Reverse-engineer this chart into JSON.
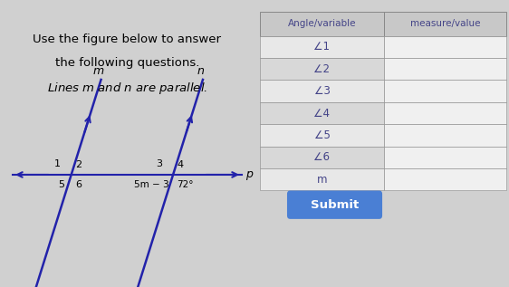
{
  "bg_color": "#d0d0d0",
  "left_panel_bg": "#ffffff",
  "right_panel_bg": "#d8d8d8",
  "toolbar_bg": "#3a3a5c",
  "title_line1": "Use the figure below to answer",
  "title_line2": "the following questions.",
  "title_line3": "Lines $m$ and $n$ are parallel.",
  "title_fontsize": 9.5,
  "table_header_col1": "Angle/variable",
  "table_header_col2": "measure/value",
  "table_rows": [
    "∠1",
    "∠2",
    "∠3",
    "∠4",
    "∠5",
    "∠6",
    "m"
  ],
  "submit_text": "Submit",
  "submit_color": "#4a7fd4",
  "submit_text_color": "#ffffff",
  "line_color": "#2222aa",
  "label_m": "m",
  "label_n": "n",
  "label_p": "p",
  "angle1": "1",
  "angle2": "2",
  "angle3": "3",
  "angle4": "4",
  "angle5": "5",
  "angle6": "6",
  "expr_5m3": "5m − 3",
  "expr_72": "72°",
  "row_bg_even": "#e8e8e8",
  "row_bg_odd": "#d8d8d8",
  "header_bg": "#c8c8c8",
  "table_text_color": "#444488",
  "divider_color": "#888888"
}
